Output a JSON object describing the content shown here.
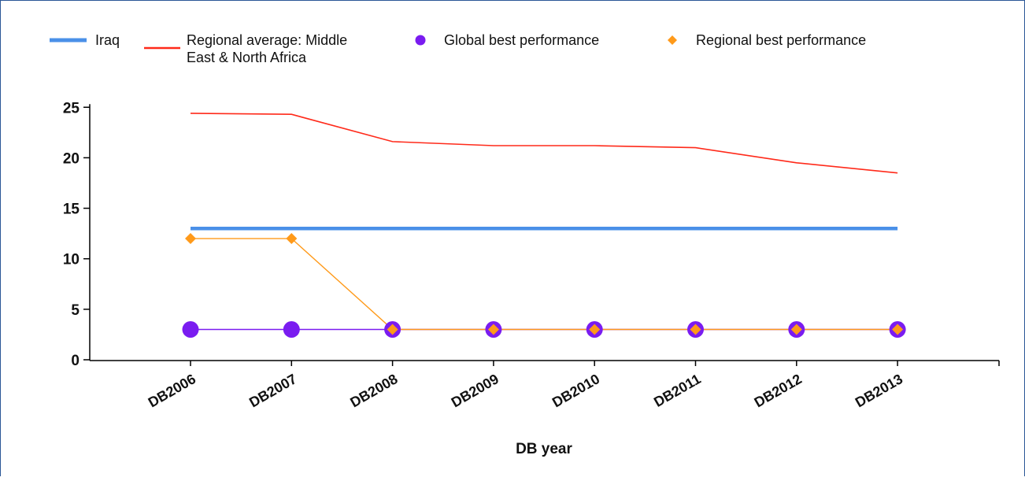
{
  "chart_data": {
    "type": "line",
    "title": "",
    "xlabel": "DB year",
    "ylabel": "",
    "ylim": [
      0,
      25
    ],
    "yticks": [
      0,
      5,
      10,
      15,
      20,
      25
    ],
    "categories": [
      "DB2006",
      "DB2007",
      "DB2008",
      "DB2009",
      "DB2010",
      "DB2011",
      "DB2012",
      "DB2013"
    ],
    "legend_position": "top",
    "grid": false,
    "series": [
      {
        "name": "Iraq",
        "legend_lines": [
          "Iraq"
        ],
        "style": "thick-line",
        "color": "#4a90e8",
        "values": [
          13,
          13,
          13,
          13,
          13,
          13,
          13,
          13
        ]
      },
      {
        "name": "Regional average: Middle East & North Africa",
        "legend_lines": [
          "Regional average: Middle",
          "East & North Africa"
        ],
        "style": "line",
        "color": "#ff2a1a",
        "values": [
          24.4,
          24.3,
          21.6,
          21.2,
          21.2,
          21.0,
          19.5,
          18.5
        ]
      },
      {
        "name": "Global best performance",
        "legend_lines": [
          "Global best performance"
        ],
        "style": "circle-markers",
        "color": "#7a1cf0",
        "values": [
          3,
          3,
          3,
          3,
          3,
          3,
          3,
          3
        ]
      },
      {
        "name": "Regional best performance",
        "legend_lines": [
          "Regional best performance"
        ],
        "style": "diamond-markers",
        "color": "#ff9a1a",
        "values": [
          12,
          12,
          3,
          3,
          3,
          3,
          3,
          3
        ]
      }
    ]
  }
}
